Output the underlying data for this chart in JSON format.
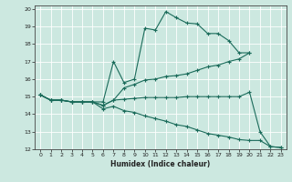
{
  "xlabel": "Humidex (Indice chaleur)",
  "bg_color": "#cce8e0",
  "line_color": "#1a6b5a",
  "xlim": [
    -0.5,
    23.5
  ],
  "ylim": [
    12,
    20.2
  ],
  "yticks": [
    12,
    13,
    14,
    15,
    16,
    17,
    18,
    19,
    20
  ],
  "xticks": [
    0,
    1,
    2,
    3,
    4,
    5,
    6,
    7,
    8,
    9,
    10,
    11,
    12,
    13,
    14,
    15,
    16,
    17,
    18,
    19,
    20,
    21,
    22,
    23
  ],
  "line1_x": [
    0,
    1,
    2,
    3,
    4,
    5,
    6,
    7,
    8,
    9,
    10,
    11,
    12,
    13,
    14,
    15,
    16,
    17,
    18,
    19,
    20
  ],
  "line1_y": [
    15.1,
    14.8,
    14.8,
    14.7,
    14.7,
    14.7,
    14.7,
    17.0,
    15.8,
    16.0,
    18.9,
    18.8,
    19.85,
    19.5,
    19.2,
    19.15,
    18.6,
    18.6,
    18.2,
    17.5,
    17.5
  ],
  "line2_x": [
    0,
    1,
    2,
    3,
    4,
    5,
    6,
    7,
    8,
    9,
    10,
    11,
    12,
    13,
    14,
    15,
    16,
    17,
    18,
    19,
    20
  ],
  "line2_y": [
    15.1,
    14.8,
    14.8,
    14.7,
    14.7,
    14.7,
    14.5,
    14.8,
    15.5,
    15.7,
    15.95,
    16.0,
    16.15,
    16.2,
    16.3,
    16.5,
    16.7,
    16.8,
    17.0,
    17.15,
    17.5
  ],
  "line3_x": [
    0,
    1,
    2,
    3,
    4,
    5,
    6,
    7,
    8,
    9,
    10,
    11,
    12,
    13,
    14,
    15,
    16,
    17,
    18,
    19,
    20,
    21,
    22,
    23
  ],
  "line3_y": [
    15.1,
    14.8,
    14.8,
    14.7,
    14.7,
    14.7,
    14.5,
    14.8,
    14.85,
    14.9,
    14.95,
    14.95,
    14.95,
    14.95,
    15.0,
    15.0,
    15.0,
    15.0,
    15.0,
    15.0,
    15.25,
    13.0,
    12.15,
    12.1
  ],
  "line4_x": [
    0,
    1,
    2,
    3,
    4,
    5,
    6,
    7,
    8,
    9,
    10,
    11,
    12,
    13,
    14,
    15,
    16,
    17,
    18,
    19,
    20,
    21,
    22,
    23
  ],
  "line4_y": [
    15.1,
    14.8,
    14.8,
    14.7,
    14.7,
    14.7,
    14.3,
    14.45,
    14.2,
    14.1,
    13.9,
    13.75,
    13.6,
    13.4,
    13.3,
    13.1,
    12.9,
    12.8,
    12.7,
    12.55,
    12.5,
    12.5,
    12.15,
    12.1
  ]
}
